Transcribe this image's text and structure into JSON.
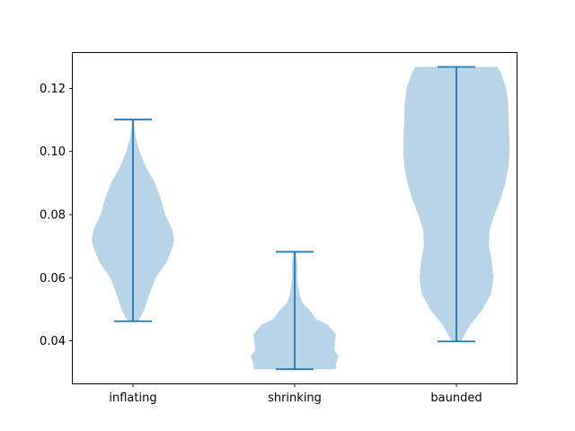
{
  "chart_data": {
    "type": "violin",
    "categories": [
      "inflating",
      "shrinking",
      "baunded"
    ],
    "ylim": [
      0.0265,
      0.1315
    ],
    "yticks": [
      0.04,
      0.06,
      0.08,
      0.1,
      0.12
    ],
    "ytick_labels": [
      "0.04",
      "0.06",
      "0.08",
      "0.10",
      "0.12"
    ],
    "title": "",
    "xlabel": "",
    "ylabel": "",
    "grid": false,
    "colors": {
      "body": "#b7d4e8",
      "line": "#1f77b4"
    },
    "series": [
      {
        "category": "inflating",
        "min": 0.0462,
        "max": 0.1101,
        "density": [
          [
            0.0462,
            0.021
          ],
          [
            0.0475,
            0.036
          ],
          [
            0.05,
            0.054
          ],
          [
            0.055,
            0.079
          ],
          [
            0.06,
            0.108
          ],
          [
            0.065,
            0.16
          ],
          [
            0.07,
            0.189
          ],
          [
            0.072,
            0.196
          ],
          [
            0.075,
            0.187
          ],
          [
            0.08,
            0.153
          ],
          [
            0.085,
            0.132
          ],
          [
            0.09,
            0.104
          ],
          [
            0.095,
            0.062
          ],
          [
            0.1,
            0.031
          ],
          [
            0.104,
            0.015
          ],
          [
            0.108,
            0.006
          ],
          [
            0.1101,
            0.004
          ]
        ]
      },
      {
        "category": "shrinking",
        "min": 0.031,
        "max": 0.0682,
        "density": [
          [
            0.031,
            0.194
          ],
          [
            0.033,
            0.196
          ],
          [
            0.035,
            0.208
          ],
          [
            0.037,
            0.188
          ],
          [
            0.04,
            0.191
          ],
          [
            0.042,
            0.196
          ],
          [
            0.045,
            0.158
          ],
          [
            0.047,
            0.101
          ],
          [
            0.05,
            0.067
          ],
          [
            0.052,
            0.037
          ],
          [
            0.054,
            0.025
          ],
          [
            0.057,
            0.018
          ],
          [
            0.06,
            0.012
          ],
          [
            0.064,
            0.014
          ],
          [
            0.0682,
            0.005
          ]
        ]
      },
      {
        "category": "baunded",
        "min": 0.0398,
        "max": 0.1268,
        "density": [
          [
            0.0398,
            0.021
          ],
          [
            0.045,
            0.065
          ],
          [
            0.05,
            0.125
          ],
          [
            0.055,
            0.165
          ],
          [
            0.06,
            0.175
          ],
          [
            0.065,
            0.168
          ],
          [
            0.07,
            0.154
          ],
          [
            0.075,
            0.157
          ],
          [
            0.08,
            0.18
          ],
          [
            0.085,
            0.21
          ],
          [
            0.09,
            0.232
          ],
          [
            0.095,
            0.246
          ],
          [
            0.1,
            0.252
          ],
          [
            0.105,
            0.25
          ],
          [
            0.11,
            0.247
          ],
          [
            0.115,
            0.245
          ],
          [
            0.12,
            0.236
          ],
          [
            0.125,
            0.21
          ],
          [
            0.1268,
            0.195
          ]
        ]
      }
    ]
  }
}
